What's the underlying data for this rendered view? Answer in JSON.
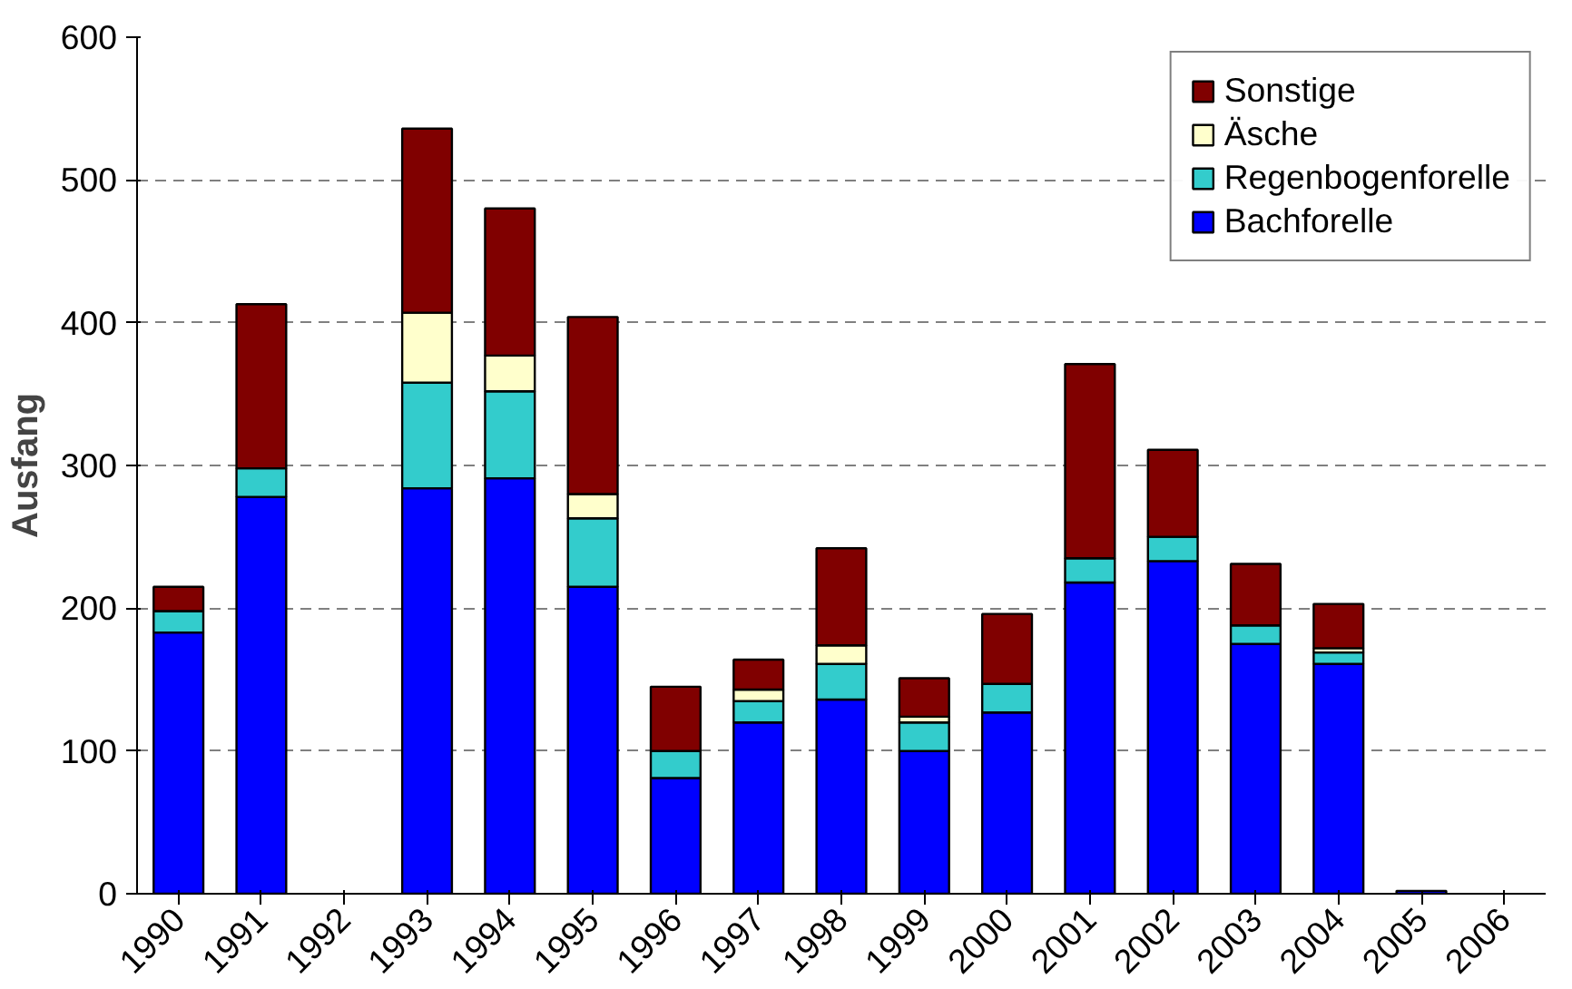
{
  "chart_data": {
    "type": "bar",
    "stacked": true,
    "ylabel": "Ausfang",
    "categories": [
      "1990",
      "1991",
      "1992",
      "1993",
      "1994",
      "1995",
      "1996",
      "1997",
      "1998",
      "1999",
      "2000",
      "2001",
      "2002",
      "2003",
      "2004",
      "2005",
      "2006"
    ],
    "series": [
      {
        "name": "Bachforelle",
        "color": "#0000ff",
        "values": [
          183,
          278,
          null,
          284,
          291,
          215,
          81,
          120,
          136,
          100,
          127,
          218,
          233,
          175,
          161,
          2,
          null
        ]
      },
      {
        "name": "Regenbogenforelle",
        "color": "#33cccc",
        "values": [
          15,
          20,
          null,
          74,
          61,
          48,
          19,
          15,
          25,
          20,
          20,
          17,
          17,
          13,
          8,
          0,
          null
        ]
      },
      {
        "name": "Äsche",
        "color": "#ffffcc",
        "values": [
          0,
          0,
          null,
          49,
          25,
          17,
          0,
          8,
          13,
          4,
          0,
          null,
          0,
          0,
          3,
          0,
          null
        ]
      },
      {
        "name": "Sonstige",
        "color": "#800000",
        "values": [
          17,
          115,
          null,
          129,
          103,
          124,
          45,
          21,
          68,
          27,
          49,
          136,
          61,
          43,
          31,
          0,
          null
        ]
      }
    ],
    "ylim": [
      0,
      600
    ],
    "yticks": [
      0,
      100,
      200,
      300,
      400,
      500,
      600
    ],
    "grid": "y",
    "legend": "top right"
  }
}
